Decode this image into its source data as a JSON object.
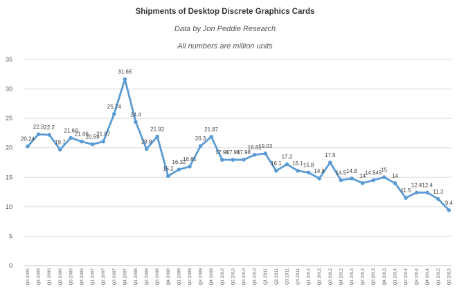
{
  "chart_data": {
    "type": "line",
    "title": "Shipments of Desktop Discrete Graphics Cards",
    "subtitles": [
      "Data by Jon Peddie Research",
      "All numbers are million units"
    ],
    "xlabel": "",
    "ylabel": "",
    "ylim": [
      0,
      35
    ],
    "yticks": [
      0,
      5,
      10,
      15,
      20,
      25,
      30,
      35
    ],
    "grid": "horizontal",
    "legend": "none",
    "line_color": "#5b9bd5",
    "categories": [
      "Q3 2005",
      "Q4 2005",
      "Q1 2006",
      "Q2 2006",
      "Q3 2006",
      "Q4 2006",
      "Q1 2007",
      "Q2 2007",
      "Q3 2007",
      "Q4 2007",
      "Q1 2008",
      "Q2 2008",
      "Q3 2008",
      "Q4 2008",
      "Q1 2009",
      "Q2 2009",
      "Q3 2009",
      "Q4 2009",
      "Q1 2010",
      "Q2 2010",
      "Q3 2010",
      "Q4 2010",
      "Q1 2011",
      "Q2 2011",
      "Q3 2011",
      "Q4 2011",
      "Q1 2012",
      "Q2 2012",
      "Q3 2012",
      "Q4 2012",
      "Q1 2013",
      "Q2 2013",
      "Q3 2013",
      "Q4 2013",
      "Q1 2014",
      "Q2 2014",
      "Q3 2014",
      "Q4 2014",
      "Q1 2015",
      "Q2 2015"
    ],
    "values": [
      20.24,
      22.3,
      22.2,
      19.7,
      21.69,
      21.06,
      20.59,
      21.07,
      25.74,
      31.65,
      24.4,
      19.8,
      21.92,
      15.2,
      16.32,
      16.81,
      20.3,
      21.87,
      17.96,
      17.96,
      17.98,
      18.81,
      19.03,
      16.1,
      17.2,
      16.1,
      15.8,
      14.8,
      17.5,
      14.5,
      14.8,
      14,
      14.5,
      15,
      14,
      11.5,
      12.4,
      12.4,
      11.3,
      9.4
    ],
    "labels": [
      "20.24",
      "22.3",
      "22.2",
      "19.7",
      "21.69",
      "21.06",
      "20.59",
      "21.07",
      "25.74",
      "31.65",
      "24.4",
      "19.8",
      "21.92",
      "15.2",
      "16.32",
      "16.81",
      "20.3",
      "21.87",
      "17.96",
      "17.96",
      "17.98",
      "18.81",
      "19.03",
      "16.1",
      "17.2",
      "16.1",
      "15.8",
      "14.8",
      "17.5",
      "14.5",
      "14.8",
      "14",
      "14.545",
      "15",
      "14",
      "11.5",
      "12.4",
      "12.4",
      "11.3",
      "9.4"
    ]
  }
}
